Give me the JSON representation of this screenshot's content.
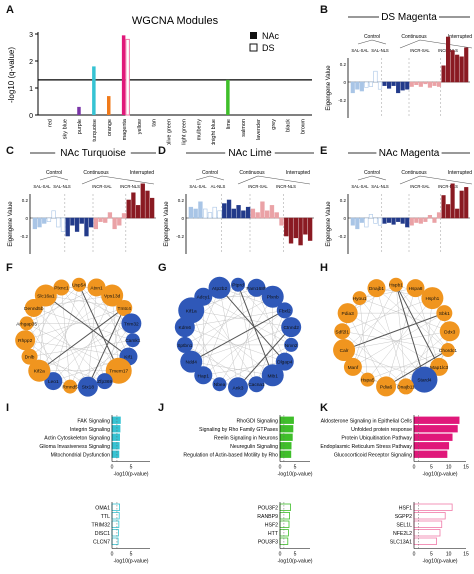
{
  "colors": {
    "nac_turquoise": "#36c3d3",
    "nac_lime": "#3fbf2a",
    "nac_magenta": "#e0187a",
    "ds_magenta": "#f07aa8",
    "node_orange": "#f0951f",
    "node_blue": "#2f58b8",
    "dark_blue": "#223a8a",
    "light_blue": "#a9c5e6",
    "dark_red": "#8a1a22",
    "light_red": "#eaa2a6"
  },
  "panel_letters": {
    "A": "A",
    "B": "B",
    "C": "C",
    "D": "D",
    "E": "E",
    "F": "F",
    "G": "G",
    "H": "H",
    "I": "I",
    "J": "J",
    "K": "K"
  },
  "chart_data": [
    {
      "panel": "A",
      "type": "bar",
      "title": "WGCNA Modules",
      "ylabel": "-log10 (q-value)",
      "ylim": [
        0,
        3
      ],
      "yticks": [
        0,
        1,
        2,
        3
      ],
      "threshold": 1.3,
      "categories": [
        "red",
        "sky blue",
        "purple",
        "turquoise",
        "orange",
        "magenta",
        "yellow",
        "tan",
        "olive green",
        "light green",
        "mulberry",
        "midnight blue",
        "lime",
        "salmon",
        "lavender",
        "grey",
        "black",
        "brown"
      ],
      "series": [
        {
          "name": "NAc",
          "values": [
            0,
            0,
            0.3,
            1.8,
            0.7,
            2.95,
            0,
            0,
            0,
            0,
            0,
            0,
            1.3,
            0,
            0,
            0,
            0,
            0
          ]
        },
        {
          "name": "DS",
          "values": [
            0,
            0,
            0,
            0,
            0,
            2.8,
            0,
            0,
            0,
            0,
            0,
            0,
            0,
            0,
            0,
            0,
            0,
            0
          ]
        }
      ],
      "legend": {
        "placement": "top-right",
        "entries": [
          "NAc",
          "DS"
        ]
      }
    },
    {
      "panel": "B",
      "type": "bar",
      "title": "DS Magenta",
      "ylabel": "Eigengene Value",
      "groups": {
        "control": "Control",
        "continuous": "Continuous",
        "interrupted": "Interrupted"
      },
      "subgroups": [
        "SAL-SAL",
        "SAL-NLS",
        "INCR-SAL",
        "INCR-NLS"
      ],
      "values": [
        -0.12,
        -0.08,
        -0.1,
        -0.06,
        -0.05,
        0.12,
        -0.08,
        -0.04,
        -0.07,
        -0.04,
        -0.12,
        -0.09,
        -0.08,
        -0.05,
        -0.03,
        -0.05,
        -0.02,
        -0.06,
        -0.04,
        -0.05,
        0.18,
        0.5,
        0.35,
        0.3,
        0.28,
        0.38
      ]
    },
    {
      "panel": "C",
      "type": "bar",
      "title": "NAc Turquoise",
      "ylabel": "Eigengene Value",
      "groups": {
        "control": "Control",
        "continuous": "Continuous",
        "interrupted": "Interrupted"
      },
      "subgroups": [
        "SAL-SAL",
        "SAL-NLS",
        "INCR-SAL",
        "INCR-NLS"
      ],
      "values": [
        -0.12,
        -0.1,
        -0.06,
        -0.04,
        0.08,
        -0.1,
        -0.15,
        -0.2,
        -0.08,
        -0.15,
        -0.06,
        -0.2,
        -0.1,
        -0.12,
        -0.04,
        -0.05,
        0.06,
        -0.12,
        -0.08,
        0.05,
        0.2,
        0.28,
        0.14,
        0.38,
        0.3,
        0.22
      ]
    },
    {
      "panel": "D",
      "type": "bar",
      "title": "NAc Lime",
      "ylabel": "Eigengene Value",
      "groups": {
        "control": "Control",
        "continuous": "Continuous",
        "interrupted": "Interrupted"
      },
      "subgroups": [
        "SAL-SAL",
        "AL-NLS",
        "INCR-SAL",
        "INCR-NLS"
      ],
      "values": [
        0.12,
        0.1,
        0.18,
        0.1,
        0.06,
        0.12,
        0.08,
        0.16,
        0.2,
        0.1,
        0.14,
        0.08,
        0.12,
        0.1,
        0.06,
        0.18,
        0.08,
        0.14,
        0.06,
        -0.08,
        -0.2,
        -0.28,
        -0.22,
        -0.3,
        -0.18,
        -0.25
      ]
    },
    {
      "panel": "E",
      "type": "bar",
      "title": "NAc Magenta",
      "ylabel": "Eigengene Value",
      "groups": {
        "control": "Control",
        "continuous": "Continuous",
        "interrupted": "Interrupted"
      },
      "subgroups": [
        "SAL-SAL",
        "SAL-NLS",
        "INCR-SAL",
        "INCR-NLS"
      ],
      "values": [
        -0.08,
        -0.12,
        -0.05,
        -0.1,
        0.04,
        -0.06,
        -0.08,
        -0.06,
        -0.05,
        -0.07,
        -0.04,
        -0.06,
        -0.1,
        -0.08,
        -0.05,
        -0.06,
        -0.04,
        0.03,
        -0.05,
        0.06,
        0.25,
        0.15,
        0.38,
        0.1,
        0.3,
        0.34
      ]
    },
    {
      "panel": "I",
      "type": "bar",
      "xlabel": "-log10(p-value)",
      "xticks": [
        0,
        5
      ],
      "xlim": [
        0,
        10
      ],
      "categories": [
        "FAK Signaling",
        "Integrin Signaling",
        "Actin Cytoskeleton Signaling",
        "Glioma Invasiveness Signaling",
        "Mitochondrial Dysfunction"
      ],
      "values": [
        2.2,
        2.1,
        2.0,
        1.9,
        1.8
      ]
    },
    {
      "panel": "J",
      "type": "bar",
      "xlabel": "-log10(p-value)",
      "xticks": [
        0,
        5
      ],
      "xlim": [
        0,
        10
      ],
      "categories": [
        "RhoGDI Signaling",
        "Signaling by Rho Family GTPases",
        "Reelin Signaling in Neurons",
        "Neuregulin Signaling",
        "Regulation of Actin-based Motility by Rho"
      ],
      "values": [
        4.5,
        4.3,
        4.1,
        3.7,
        3.6
      ]
    },
    {
      "panel": "K",
      "type": "bar",
      "xlabel": "-log10(p-value)",
      "xticks": [
        0,
        5,
        10,
        15
      ],
      "xlim": [
        0,
        15
      ],
      "categories": [
        "Aldosterone Signaling in Epithelial Cells",
        "Unfolded protein response",
        "Protein Ubiquitination Pathway",
        "Endoplasmic Reticulum Stress Pathway",
        "Glucocorticoid Receptor Signaling"
      ],
      "values": [
        13,
        12.5,
        11,
        10,
        9.5
      ]
    },
    {
      "panel": "I2",
      "type": "bar",
      "xlabel": "-log10(p-value)",
      "xticks": [
        0,
        5
      ],
      "xlim": [
        0,
        10
      ],
      "categories": [
        "OMA1",
        "TTL",
        "TRIM32",
        "DISC1",
        "CLCN7"
      ],
      "values": [
        2.0,
        1.9,
        1.8,
        1.7,
        1.6
      ]
    },
    {
      "panel": "J2",
      "type": "bar",
      "xlabel": "-log10(p-value)",
      "xticks": [
        0,
        5
      ],
      "xlim": [
        0,
        10
      ],
      "categories": [
        "POU3F2",
        "RANBP9",
        "HSF2",
        "HTT",
        "POU3F3"
      ],
      "values": [
        3.5,
        3.2,
        3.0,
        2.8,
        2.6
      ]
    },
    {
      "panel": "K2",
      "type": "bar",
      "xlabel": "-log10(p-value)",
      "xticks": [
        0,
        5,
        10,
        15
      ],
      "xlim": [
        0,
        15
      ],
      "categories": [
        "HSF1",
        "SGPP2",
        "SEL1L",
        "NFE2L2",
        "SLC13A1"
      ],
      "values": [
        11,
        9,
        8,
        7.5,
        6.5
      ]
    }
  ],
  "networks": {
    "F": [
      {
        "label": "Usp54",
        "c": "o"
      },
      {
        "label": "Atxn1",
        "c": "o"
      },
      {
        "label": "Vps13d",
        "c": "o"
      },
      {
        "label": "Tmtc4",
        "c": "o"
      },
      {
        "label": "Trim32",
        "c": "b"
      },
      {
        "label": "Camk1",
        "c": "b"
      },
      {
        "label": "Kif1",
        "c": "b"
      },
      {
        "label": "Tmem17",
        "c": "o"
      },
      {
        "label": "Zfp369",
        "c": "b"
      },
      {
        "label": "Stx18",
        "c": "b"
      },
      {
        "label": "Rmnd5",
        "c": "o"
      },
      {
        "label": "Leo1",
        "c": "b"
      },
      {
        "label": "Kif2a",
        "c": "o"
      },
      {
        "label": "Dnlb",
        "c": "o"
      },
      {
        "label": "Rhpp2",
        "c": "o"
      },
      {
        "label": "Arhgap35",
        "c": "o"
      },
      {
        "label": "Dennd5b",
        "c": "o"
      },
      {
        "label": "Slc16a1",
        "c": "o"
      },
      {
        "label": "Plxnc1",
        "c": "o"
      }
    ],
    "G": [
      {
        "label": "Ptprd",
        "c": "b"
      },
      {
        "label": "Fam168b",
        "c": "b"
      },
      {
        "label": "Plxnb",
        "c": "b"
      },
      {
        "label": "Fbxl2",
        "c": "b"
      },
      {
        "label": "Ctnnd2",
        "c": "b"
      },
      {
        "label": "Nrxn2",
        "c": "b"
      },
      {
        "label": "Dlgap4",
        "c": "b"
      },
      {
        "label": "Mib1",
        "c": "b"
      },
      {
        "label": "Cacna1",
        "c": "b"
      },
      {
        "label": "Ank3",
        "c": "b"
      },
      {
        "label": "Nbea",
        "c": "b"
      },
      {
        "label": "Hap1",
        "c": "b"
      },
      {
        "label": "Ndd4",
        "c": "b"
      },
      {
        "label": "Sptbn1",
        "c": "b"
      },
      {
        "label": "Kdm6",
        "c": "b"
      },
      {
        "label": "Kif1a",
        "c": "b"
      },
      {
        "label": "Adcy1",
        "c": "b"
      },
      {
        "label": "Atp2b2",
        "c": "b"
      }
    ],
    "H": [
      {
        "label": "Hspb1",
        "c": "o"
      },
      {
        "label": "Hspa8",
        "c": "o"
      },
      {
        "label": "Hsph1",
        "c": "o"
      },
      {
        "label": "Sbk1",
        "c": "o"
      },
      {
        "label": "Ddx3",
        "c": "o"
      },
      {
        "label": "Chordc1",
        "c": "o"
      },
      {
        "label": "Map1lc3",
        "c": "o"
      },
      {
        "label": "Stard4",
        "c": "b"
      },
      {
        "label": "Dnajb11",
        "c": "o"
      },
      {
        "label": "Pdia6",
        "c": "o"
      },
      {
        "label": "Hspa5",
        "c": "o"
      },
      {
        "label": "Manf",
        "c": "o"
      },
      {
        "label": "Calr",
        "c": "o"
      },
      {
        "label": "Sdf2l1",
        "c": "o"
      },
      {
        "label": "Pdia3",
        "c": "o"
      },
      {
        "label": "Hyou1",
        "c": "o"
      },
      {
        "label": "Dnajb1",
        "c": "o"
      }
    ]
  }
}
